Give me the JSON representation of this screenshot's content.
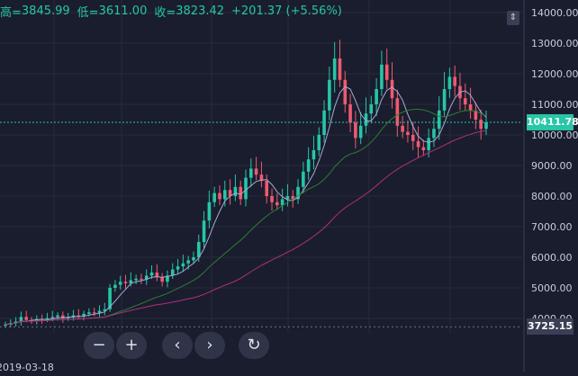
{
  "ohlc": {
    "high_label": "高=",
    "high_value": "3845.99",
    "low_label": "低=",
    "low_value": "3611.00",
    "close_label": "收=",
    "close_value": "3823.42",
    "change": "+201.37 (+5.56%)"
  },
  "colors": {
    "background": "#1a1d2e",
    "up": "#26c6a6",
    "down": "#ef5a6f",
    "ma_fast": "#a8a8d8",
    "ma_mid": "#2e7d32",
    "ma_slow": "#b0307a",
    "axis_text": "#c9ccd8"
  },
  "icons": {
    "corner": "scale-toggle-icon",
    "zoom_out": "minus-icon",
    "zoom_in": "plus-icon",
    "prev": "chevron-left-icon",
    "next": "chevron-right-icon",
    "reset": "reset-icon"
  },
  "controls": {
    "zoom_out_glyph": "−",
    "zoom_in_glyph": "+",
    "prev_glyph": "‹",
    "next_glyph": "›",
    "reset_glyph": "↻",
    "corner_glyph": "⇕"
  },
  "chart_data": {
    "type": "candlestick",
    "y_ticks": [
      "14000.00",
      "13000.00",
      "12000.00",
      "11000.00",
      "10000.00",
      "9000.00",
      "8000.00",
      "7000.00",
      "6000.00",
      "5000.00",
      "4000.00"
    ],
    "ylim": [
      3500,
      14200
    ],
    "current_price": "10411.78",
    "current_price_value": 10411.78,
    "marker_price": "3725.15",
    "marker_price_value": 3725.15,
    "x_label_partial": "2019-03-18",
    "grid": true,
    "close_series": [
      3800,
      3850,
      3900,
      4050,
      3950,
      3920,
      3980,
      3960,
      4010,
      4050,
      4100,
      4000,
      4030,
      4100,
      4080,
      4150,
      4200,
      4180,
      4250,
      4300,
      5000,
      5100,
      5200,
      5150,
      5250,
      5300,
      5280,
      5400,
      5500,
      5350,
      5200,
      5400,
      5600,
      5700,
      5800,
      5900,
      6000,
      6500,
      7200,
      7800,
      8100,
      7900,
      8200,
      8000,
      8300,
      7900,
      8600,
      8900,
      8700,
      8500,
      8000,
      7800,
      7700,
      7900,
      8000,
      7900,
      8300,
      8800,
      9200,
      9500,
      10000,
      10800,
      11800,
      12500,
      11800,
      11000,
      10400,
      9900,
      10300,
      10700,
      11000,
      11500,
      12300,
      11800,
      11200,
      10300,
      10100,
      10000,
      9800,
      9600,
      9500,
      9900,
      10200,
      10800,
      11500,
      11900,
      11600,
      11200,
      11000,
      10800,
      10500,
      10200,
      10411.78
    ]
  }
}
